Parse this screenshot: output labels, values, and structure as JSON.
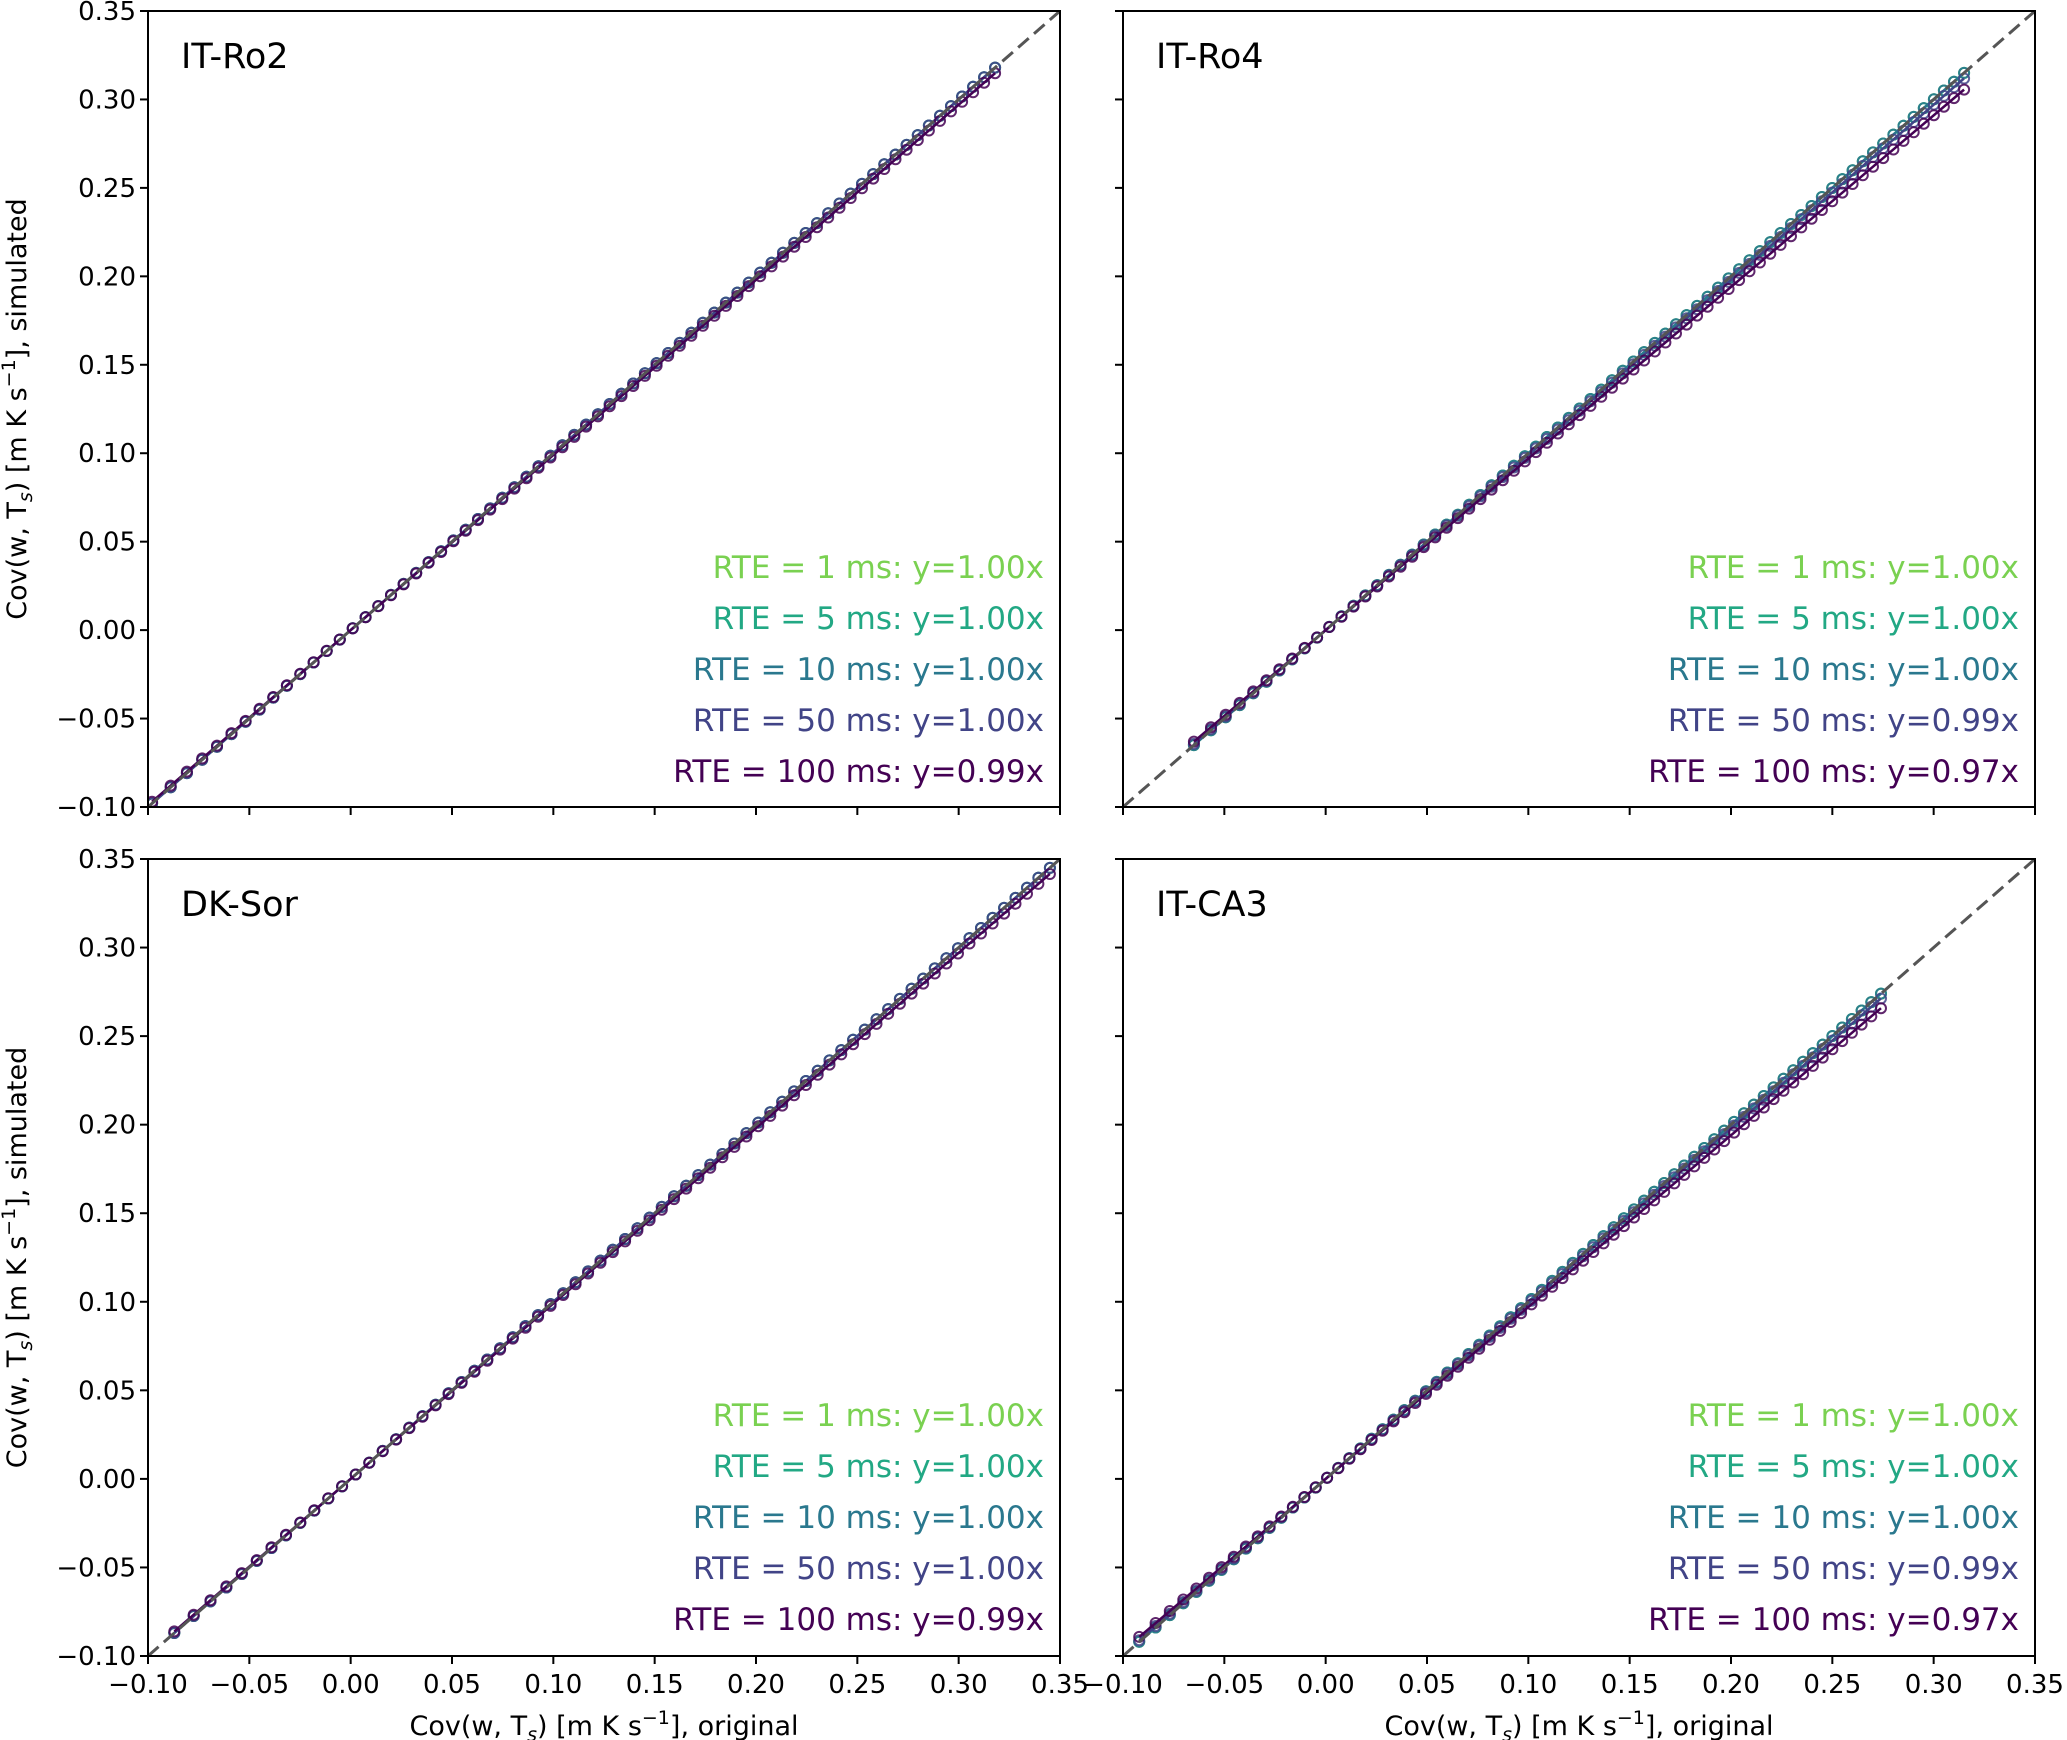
{
  "chart_data": {
    "type": "scatter",
    "xlabel": "Cov(w, T_s) [m K s^-1], original",
    "ylabel": "Cov(w, T_s) [m K s^-1], simulated",
    "xlabel_parts": {
      "pre": "Cov(w, T",
      "sub": "s",
      "mid": ") [m K s",
      "sup": "−1",
      "post": "], original"
    },
    "ylabel_parts": {
      "pre": "Cov(w, T",
      "sub": "s",
      "mid": ") [m K s",
      "sup": "−1",
      "post": "], simulated"
    },
    "xlim": [
      -0.1,
      0.35
    ],
    "ylim": [
      -0.1,
      0.35
    ],
    "ticks": [
      -0.1,
      -0.05,
      0.0,
      0.05,
      0.1,
      0.15,
      0.2,
      0.25,
      0.3,
      0.35
    ],
    "tick_labels": [
      "−0.10",
      "−0.05",
      "0.00",
      "0.05",
      "0.10",
      "0.15",
      "0.20",
      "0.25",
      "0.30",
      "0.35"
    ],
    "reference_line": "1:1 dashed",
    "series_colors": {
      "1": "#7ad151",
      "5": "#22a884",
      "10": "#2a788e",
      "50": "#414487",
      "100": "#440154"
    },
    "panels": [
      {
        "title": "IT-Ro2",
        "x_range": [
          -0.098,
          0.318
        ],
        "series": [
          {
            "rte_ms": 1,
            "slope": 1.0,
            "label": "RTE = 1 ms: y=1.00x",
            "color": "#7ad151"
          },
          {
            "rte_ms": 5,
            "slope": 1.0,
            "label": "RTE = 5 ms: y=1.00x",
            "color": "#22a884"
          },
          {
            "rte_ms": 10,
            "slope": 1.0,
            "label": "RTE = 10 ms: y=1.00x",
            "color": "#2a788e"
          },
          {
            "rte_ms": 50,
            "slope": 1.0,
            "label": "RTE = 50 ms: y=1.00x",
            "color": "#414487"
          },
          {
            "rte_ms": 100,
            "slope": 0.99,
            "label": "RTE = 100 ms: y=0.99x",
            "color": "#440154"
          }
        ]
      },
      {
        "title": "IT-Ro4",
        "x_range": [
          -0.065,
          0.315
        ],
        "series": [
          {
            "rte_ms": 1,
            "slope": 1.0,
            "label": "RTE = 1 ms: y=1.00x",
            "color": "#7ad151"
          },
          {
            "rte_ms": 5,
            "slope": 1.0,
            "label": "RTE = 5 ms: y=1.00x",
            "color": "#22a884"
          },
          {
            "rte_ms": 10,
            "slope": 1.0,
            "label": "RTE = 10 ms: y=1.00x",
            "color": "#2a788e"
          },
          {
            "rte_ms": 50,
            "slope": 0.99,
            "label": "RTE = 50 ms: y=0.99x",
            "color": "#414487"
          },
          {
            "rte_ms": 100,
            "slope": 0.97,
            "label": "RTE = 100 ms: y=0.97x",
            "color": "#440154"
          }
        ]
      },
      {
        "title": "DK-Sor",
        "x_range": [
          -0.087,
          0.345
        ],
        "series": [
          {
            "rte_ms": 1,
            "slope": 1.0,
            "label": "RTE = 1 ms: y=1.00x",
            "color": "#7ad151"
          },
          {
            "rte_ms": 5,
            "slope": 1.0,
            "label": "RTE = 5 ms: y=1.00x",
            "color": "#22a884"
          },
          {
            "rte_ms": 10,
            "slope": 1.0,
            "label": "RTE = 10 ms: y=1.00x",
            "color": "#2a788e"
          },
          {
            "rte_ms": 50,
            "slope": 1.0,
            "label": "RTE = 50 ms: y=1.00x",
            "color": "#414487"
          },
          {
            "rte_ms": 100,
            "slope": 0.99,
            "label": "RTE = 100 ms: y=0.99x",
            "color": "#440154"
          }
        ]
      },
      {
        "title": "IT-CA3",
        "x_range": [
          -0.092,
          0.274
        ],
        "series": [
          {
            "rte_ms": 1,
            "slope": 1.0,
            "label": "RTE = 1 ms: y=1.00x",
            "color": "#7ad151"
          },
          {
            "rte_ms": 5,
            "slope": 1.0,
            "label": "RTE = 5 ms: y=1.00x",
            "color": "#22a884"
          },
          {
            "rte_ms": 10,
            "slope": 1.0,
            "label": "RTE = 10 ms: y=1.00x",
            "color": "#2a788e"
          },
          {
            "rte_ms": 50,
            "slope": 0.99,
            "label": "RTE = 50 ms: y=0.99x",
            "color": "#414487"
          },
          {
            "rte_ms": 100,
            "slope": 0.97,
            "label": "RTE = 100 ms: y=0.97x",
            "color": "#440154"
          }
        ]
      }
    ]
  }
}
